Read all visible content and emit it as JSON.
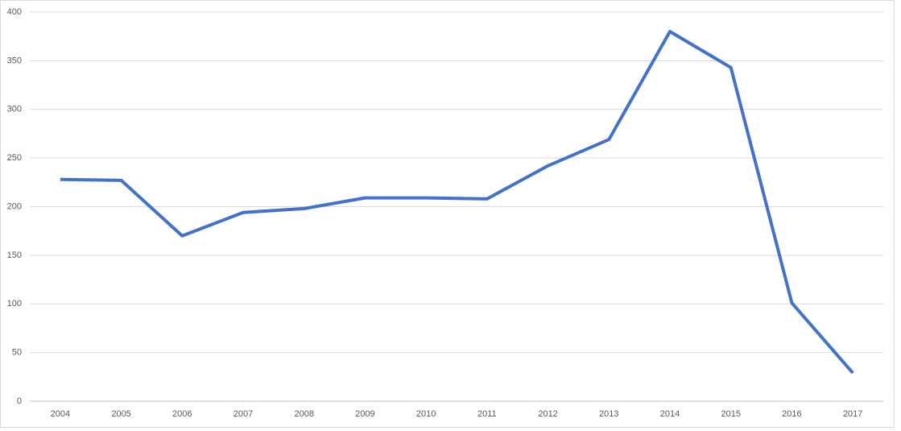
{
  "chart_data": {
    "type": "line",
    "categories": [
      "2004",
      "2005",
      "2006",
      "2007",
      "2008",
      "2009",
      "2010",
      "2011",
      "2012",
      "2013",
      "2014",
      "2015",
      "2016",
      "2017"
    ],
    "series": [
      {
        "color": "#4472c4",
        "values": [
          228,
          227,
          170,
          194,
          198,
          209,
          209,
          208,
          242,
          269,
          380,
          343,
          101,
          29
        ]
      }
    ],
    "ylim": [
      0,
      400
    ],
    "yticks": [
      0,
      50,
      100,
      150,
      200,
      250,
      300,
      350,
      400
    ],
    "grid": true
  }
}
